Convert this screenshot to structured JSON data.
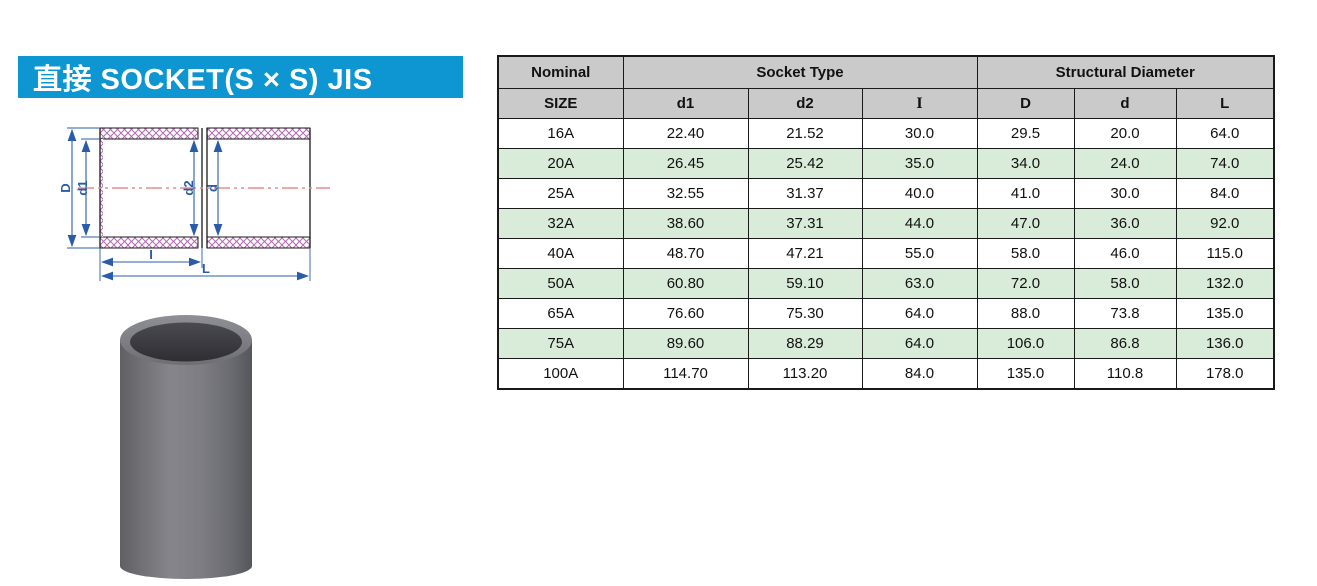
{
  "title": {
    "text": "直接 SOCKET(S × S) JIS"
  },
  "colors": {
    "title_bar_bg": "#0e96d3",
    "title_text": "#ffffff",
    "table_header_bg": "#cacaca",
    "table_alt_row_bg": "#d9ecd9",
    "table_border": "#1a1a1a",
    "dimension_blue": "#2a5caa",
    "centerline_red": "#ef8b8b",
    "hatch_magenta": "#b468b4",
    "pipe_body_gray": "#77777d",
    "pipe_interior_dark": "#35353a"
  },
  "diagram": {
    "labels": {
      "D": "D",
      "d1": "d1",
      "d2": "d2",
      "d": "d",
      "I": "I",
      "L": "L"
    }
  },
  "table": {
    "header_groups": {
      "nominal": "Nominal",
      "socket_type": "Socket Type",
      "structural_diameter": "Structural Diameter"
    },
    "columns": [
      "SIZE",
      "d1",
      "d2",
      "I",
      "D",
      "d",
      "L"
    ],
    "rows": [
      {
        "size": "16A",
        "values": [
          "22.40",
          "21.52",
          "30.0",
          "29.5",
          "20.0",
          "64.0"
        ]
      },
      {
        "size": "20A",
        "values": [
          "26.45",
          "25.42",
          "35.0",
          "34.0",
          "24.0",
          "74.0"
        ]
      },
      {
        "size": "25A",
        "values": [
          "32.55",
          "31.37",
          "40.0",
          "41.0",
          "30.0",
          "84.0"
        ]
      },
      {
        "size": "32A",
        "values": [
          "38.60",
          "37.31",
          "44.0",
          "47.0",
          "36.0",
          "92.0"
        ]
      },
      {
        "size": "40A",
        "values": [
          "48.70",
          "47.21",
          "55.0",
          "58.0",
          "46.0",
          "115.0"
        ]
      },
      {
        "size": "50A",
        "values": [
          "60.80",
          "59.10",
          "63.0",
          "72.0",
          "58.0",
          "132.0"
        ]
      },
      {
        "size": "65A",
        "values": [
          "76.60",
          "75.30",
          "64.0",
          "88.0",
          "73.8",
          "135.0"
        ]
      },
      {
        "size": "75A",
        "values": [
          "89.60",
          "88.29",
          "64.0",
          "106.0",
          "86.8",
          "136.0"
        ]
      },
      {
        "size": "100A",
        "values": [
          "114.70",
          "113.20",
          "84.0",
          "135.0",
          "110.8",
          "178.0"
        ]
      }
    ]
  }
}
